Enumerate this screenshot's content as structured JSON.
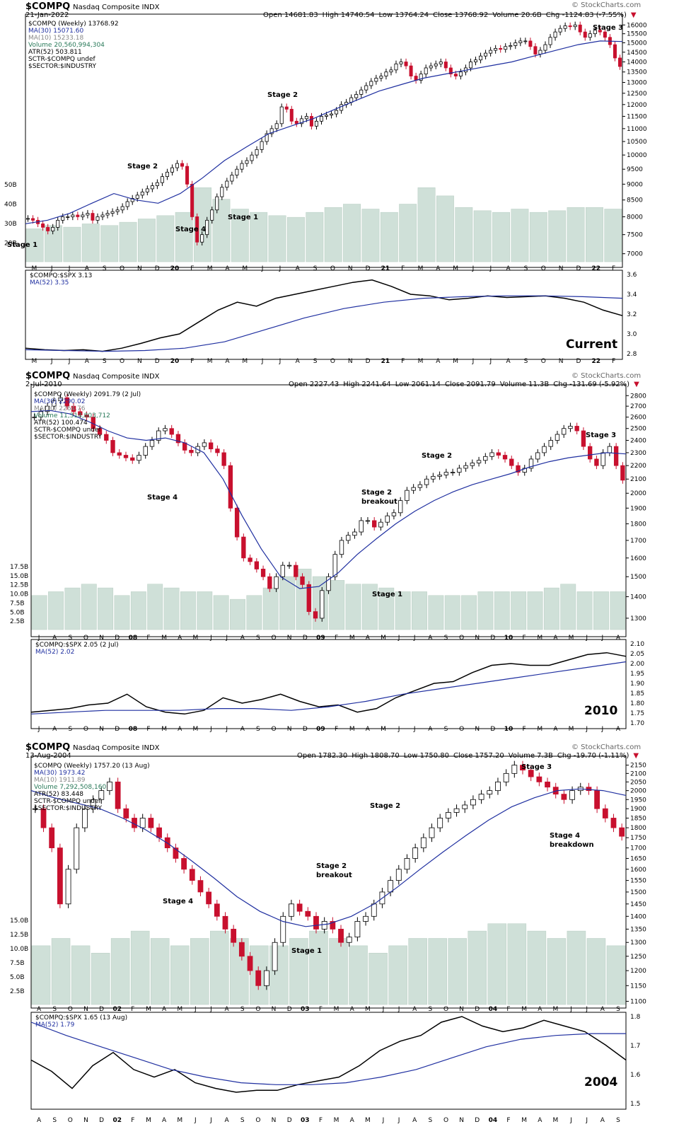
{
  "colors": {
    "up": "#000000",
    "down": "#c8102e",
    "ma30": "#1f2fa0",
    "ma10": "#999999",
    "volume": "#cfe0d8",
    "level": "#000000",
    "ratio": "#000000"
  },
  "panels": [
    {
      "symbol": "$COMPQ",
      "name": "Nasdaq Composite INDX",
      "date": "21-Jan-2022",
      "ohlc": {
        "open": "Open 14681.83",
        "high": "High 14740.54",
        "low": "Low 13764.24",
        "close": "Close 13768.92",
        "volume": "Volume 20.6B",
        "chg": "Chg -1124.83 (-7.55%)"
      },
      "brand": "© StockCharts.com",
      "legend": [
        "$COMPQ (Weekly) 13768.92",
        "MA(30) 15071.60",
        "MA(10) 15233.18",
        "Volume 20,560,994,304",
        "ATR(52) 503.811",
        "SCTR-$COMPQ undef",
        "$SECTOR:$INDUSTRY"
      ],
      "ratio_legend": [
        "$COMPQ:$SPX 3.13",
        "MA(52) 3.35"
      ],
      "period_label": "Current",
      "annotations": [
        "Stage 1",
        "Stage 2",
        "Stage 4",
        "Stage 1",
        "Stage 2",
        "Stage 3"
      ],
      "x_ticks": [
        "M",
        "J",
        "J",
        "A",
        "S",
        "O",
        "N",
        "D",
        "20",
        "F",
        "M",
        "A",
        "M",
        "J",
        "J",
        "A",
        "S",
        "O",
        "N",
        "D",
        "21",
        "F",
        "M",
        "A",
        "M",
        "J",
        "J",
        "A",
        "S",
        "O",
        "N",
        "D",
        "22",
        "F"
      ],
      "price_ticks": [
        "16000",
        "15500",
        "15000",
        "14500",
        "14000",
        "13500",
        "13000",
        "12500",
        "12000",
        "11500",
        "11000",
        "10500",
        "10000",
        "9500",
        "9000",
        "8500",
        "8000",
        "7500",
        "7000"
      ],
      "volume_ticks": [
        "50B",
        "40B",
        "30B",
        "20B"
      ],
      "ratio_ticks": [
        "3.6",
        "3.4",
        "3.2",
        "3.0",
        "2.8"
      ]
    },
    {
      "symbol": "$COMPQ",
      "name": "Nasdaq Composite INDX",
      "date": "2-Jul-2010",
      "ohlc": {
        "open": "Open 2227.43",
        "high": "High 2241.64",
        "low": "Low 2061.14",
        "close": "Close 2091.79",
        "volume": "Volume 11.3B",
        "chg": "Chg -131.69 (-5.92%)"
      },
      "brand": "© StockCharts.com",
      "legend": [
        "$COMPQ (Weekly) 2091.79 (2 Jul)",
        "MA(30) 2290.02",
        "MA(10) 2264.76",
        "Volume 11,314,803,712",
        "ATR(52) 100.474",
        "SCTR-$COMPQ undef",
        "$SECTOR:$INDUSTRY"
      ],
      "ratio_legend": [
        "$COMPQ:$SPX 2.05 (2 Jul)",
        "MA(52) 2.02"
      ],
      "period_label": "2010",
      "annotations": [
        "Stage 4",
        "Stage 2",
        "breakout",
        "Stage 1",
        "Stage 2",
        "Stage 3"
      ],
      "x_ticks": [
        "J",
        "A",
        "S",
        "O",
        "N",
        "D",
        "08",
        "F",
        "M",
        "A",
        "M",
        "J",
        "J",
        "A",
        "S",
        "O",
        "N",
        "D",
        "09",
        "F",
        "M",
        "A",
        "M",
        "J",
        "J",
        "A",
        "S",
        "O",
        "N",
        "D",
        "10",
        "F",
        "M",
        "A",
        "M",
        "J",
        "J",
        "A"
      ],
      "price_ticks": [
        "2800",
        "2700",
        "2600",
        "2500",
        "2400",
        "2300",
        "2200",
        "2100",
        "2000",
        "1900",
        "1800",
        "1700",
        "1600",
        "1500",
        "1400",
        "1300"
      ],
      "volume_ticks": [
        "17.5B",
        "15.0B",
        "12.5B",
        "10.0B",
        "7.5B",
        "5.0B",
        "2.5B"
      ],
      "ratio_ticks": [
        "2.10",
        "2.05",
        "2.00",
        "1.95",
        "1.90",
        "1.85",
        "1.80",
        "1.75",
        "1.70"
      ]
    },
    {
      "symbol": "$COMPQ",
      "name": "Nasdaq Composite INDX",
      "date": "13-Aug-2004",
      "ohlc": {
        "open": "Open 1782.30",
        "high": "High 1808.70",
        "low": "Low 1750.80",
        "close": "Close 1757.20",
        "volume": "Volume 7.3B",
        "chg": "Chg -19.70 (-1.11%)"
      },
      "brand": "© StockCharts.com",
      "legend": [
        "$COMPQ (Weekly) 1757.20 (13 Aug)",
        "MA(30) 1973.42",
        "MA(10) 1911.89",
        "Volume 7,292,508,160",
        "ATR(52) 83.448",
        "SCTR-$COMPQ undef",
        "$SECTOR:$INDUSTRY"
      ],
      "ratio_legend": [
        "$COMPQ:$SPX 1.65 (13 Aug)",
        "MA(52) 1.79"
      ],
      "period_label": "2004",
      "annotations": [
        "Stage 4",
        "Stage 2",
        "breakout",
        "Stage 1",
        "Stage 2",
        "Stage 3",
        "Stage 4",
        "breakdown"
      ],
      "x_ticks": [
        "A",
        "S",
        "O",
        "N",
        "D",
        "02",
        "F",
        "M",
        "A",
        "M",
        "J",
        "J",
        "A",
        "S",
        "O",
        "N",
        "D",
        "03",
        "F",
        "M",
        "A",
        "M",
        "J",
        "J",
        "A",
        "S",
        "O",
        "N",
        "D",
        "04",
        "F",
        "M",
        "A",
        "M",
        "J",
        "J",
        "A",
        "S"
      ],
      "price_ticks": [
        "2150",
        "2100",
        "2050",
        "2000",
        "1950",
        "1900",
        "1850",
        "1800",
        "1750",
        "1700",
        "1650",
        "1600",
        "1550",
        "1500",
        "1450",
        "1400",
        "1350",
        "1300",
        "1250",
        "1200",
        "1150",
        "1100"
      ],
      "volume_ticks": [
        "15.0B",
        "12.5B",
        "10.0B",
        "7.5B",
        "5.0B",
        "2.5B"
      ],
      "ratio_ticks": [
        "1.8",
        "1.7",
        "1.6",
        "1.5"
      ]
    }
  ],
  "chart_data": [
    {
      "type": "candlestick",
      "title": "$COMPQ Nasdaq Composite INDX",
      "subtitle": "21-Jan-2022",
      "series": [
        {
          "name": "$COMPQ (Weekly)",
          "values": [
            7950,
            7900,
            7800,
            7700,
            7600,
            7700,
            7900,
            8000,
            8000,
            8050,
            8000,
            8050,
            8100,
            7900,
            8000,
            8050,
            8100,
            8150,
            8200,
            8300,
            8450,
            8550,
            8650,
            8750,
            8850,
            8950,
            9050,
            9250,
            9400,
            9550,
            9700,
            9600,
            9000,
            8000,
            7300,
            7500,
            7900,
            8200,
            8600,
            8900,
            9100,
            9300,
            9500,
            9700,
            9800,
            10000,
            10200,
            10500,
            10800,
            11000,
            11200,
            11900,
            11800,
            11300,
            11200,
            11400,
            11500,
            11100,
            11300,
            11500,
            11550,
            11600,
            11750,
            12000,
            12100,
            12300,
            12450,
            12650,
            12850,
            13050,
            13200,
            13300,
            13500,
            13600,
            13900,
            14000,
            13800,
            13300,
            13100,
            13400,
            13700,
            13800,
            13900,
            14000,
            13700,
            13400,
            13300,
            13500,
            13700,
            14000,
            14100,
            14300,
            14450,
            14600,
            14700,
            14650,
            14800,
            14850,
            15000,
            15100,
            15100,
            14800,
            14400,
            14600,
            14900,
            15300,
            15600,
            15800,
            15950,
            15900,
            16000,
            15600,
            15300,
            15500,
            15700,
            15600,
            15300,
            14900,
            14200,
            13769
          ]
        },
        {
          "name": "MA(30)",
          "values": [
            7800,
            7900,
            8100,
            8400,
            8700,
            8500,
            8400,
            8700,
            9200,
            9800,
            10300,
            10800,
            11100,
            11400,
            11800,
            12200,
            12600,
            12900,
            13200,
            13400,
            13600,
            13800,
            14000,
            14300,
            14600,
            14900,
            15100,
            15071
          ]
        },
        {
          "name": "Volume",
          "values": [
            20,
            22,
            21,
            23,
            22,
            24,
            26,
            28,
            30,
            45,
            38,
            32,
            30,
            28,
            27,
            30,
            33,
            35,
            32,
            30,
            35,
            45,
            40,
            33,
            31,
            30,
            32,
            30,
            31,
            33,
            33,
            32
          ]
        },
        {
          "name": "$COMPQ:$SPX",
          "values": [
            2.72,
            2.7,
            2.69,
            2.7,
            2.68,
            2.72,
            2.78,
            2.85,
            2.9,
            3.05,
            3.2,
            3.3,
            3.25,
            3.35,
            3.4,
            3.45,
            3.5,
            3.55,
            3.58,
            3.5,
            3.4,
            3.38,
            3.33,
            3.35,
            3.38,
            3.36,
            3.37,
            3.38,
            3.35,
            3.3,
            3.2,
            3.13
          ]
        },
        {
          "name": "MA(52)",
          "values": [
            2.7,
            2.69,
            2.68,
            2.69,
            2.72,
            2.8,
            2.95,
            3.1,
            3.22,
            3.3,
            3.35,
            3.37,
            3.38,
            3.38,
            3.37,
            3.35
          ]
        }
      ],
      "ylim": [
        6800,
        16300
      ],
      "ratio_ylim": [
        2.65,
        3.65
      ]
    },
    {
      "type": "candlestick",
      "title": "$COMPQ Nasdaq Composite INDX",
      "subtitle": "2-Jul-2010",
      "series": [
        {
          "name": "$COMPQ (Weekly)",
          "values": [
            2600,
            2650,
            2700,
            2750,
            2780,
            2700,
            2650,
            2620,
            2600,
            2500,
            2450,
            2400,
            2300,
            2280,
            2260,
            2240,
            2280,
            2350,
            2400,
            2480,
            2500,
            2450,
            2380,
            2320,
            2300,
            2350,
            2380,
            2330,
            2300,
            2200,
            1900,
            1720,
            1600,
            1580,
            1540,
            1500,
            1440,
            1500,
            1560,
            1560,
            1500,
            1460,
            1330,
            1300,
            1430,
            1500,
            1620,
            1700,
            1730,
            1750,
            1820,
            1820,
            1780,
            1810,
            1850,
            1870,
            1950,
            2020,
            2040,
            2060,
            2100,
            2120,
            2130,
            2150,
            2150,
            2180,
            2200,
            2220,
            2240,
            2270,
            2300,
            2280,
            2250,
            2200,
            2150,
            2180,
            2250,
            2300,
            2350,
            2400,
            2450,
            2500,
            2520,
            2480,
            2350,
            2250,
            2200,
            2300,
            2350,
            2200,
            2092
          ]
        },
        {
          "name": "MA(30)",
          "values": [
            2650,
            2660,
            2630,
            2560,
            2480,
            2420,
            2400,
            2420,
            2380,
            2300,
            2100,
            1850,
            1650,
            1500,
            1440,
            1450,
            1520,
            1620,
            1710,
            1800,
            1880,
            1950,
            2010,
            2060,
            2100,
            2140,
            2190,
            2230,
            2260,
            2280,
            2300,
            2290
          ]
        },
        {
          "name": "Volume",
          "values": [
            9,
            10,
            11,
            12,
            11,
            9,
            10,
            12,
            11,
            10,
            10,
            9,
            8,
            9,
            11,
            14,
            16,
            14,
            13,
            12,
            12,
            11,
            10,
            10,
            9,
            9,
            9,
            10,
            10,
            10,
            10,
            11,
            12,
            10,
            10,
            10
          ]
        },
        {
          "name": "$COMPQ:$SPX",
          "values": [
            1.74,
            1.75,
            1.76,
            1.78,
            1.79,
            1.84,
            1.77,
            1.74,
            1.73,
            1.75,
            1.82,
            1.79,
            1.81,
            1.84,
            1.8,
            1.77,
            1.78,
            1.74,
            1.76,
            1.82,
            1.86,
            1.9,
            1.91,
            1.96,
            2.0,
            2.01,
            2.0,
            2.0,
            2.03,
            2.06,
            2.07,
            2.05
          ]
        },
        {
          "name": "MA(52)",
          "values": [
            1.73,
            1.74,
            1.75,
            1.75,
            1.75,
            1.76,
            1.76,
            1.75,
            1.77,
            1.8,
            1.84,
            1.87,
            1.9,
            1.93,
            1.96,
            1.99,
            2.02
          ]
        }
      ],
      "ylim": [
        1250,
        2850
      ],
      "ratio_ylim": [
        1.68,
        2.12
      ]
    },
    {
      "type": "candlestick",
      "title": "$COMPQ Nasdaq Composite INDX",
      "subtitle": "13-Aug-2004",
      "series": [
        {
          "name": "$COMPQ (Weekly)",
          "values": [
            1900,
            1800,
            1700,
            1450,
            1600,
            1800,
            1900,
            1950,
            2000,
            2050,
            1900,
            1850,
            1800,
            1850,
            1800,
            1750,
            1700,
            1650,
            1600,
            1550,
            1500,
            1450,
            1400,
            1350,
            1300,
            1250,
            1200,
            1150,
            1200,
            1300,
            1400,
            1450,
            1420,
            1400,
            1350,
            1380,
            1350,
            1300,
            1320,
            1380,
            1400,
            1450,
            1500,
            1550,
            1600,
            1650,
            1700,
            1750,
            1800,
            1850,
            1880,
            1900,
            1920,
            1950,
            1980,
            2000,
            2050,
            2100,
            2150,
            2120,
            2080,
            2050,
            2020,
            1980,
            1950,
            2000,
            2020,
            2000,
            1900,
            1850,
            1800,
            1757
          ]
        },
        {
          "name": "MA(30)",
          "values": [
            2000,
            1960,
            1930,
            1900,
            1850,
            1790,
            1720,
            1640,
            1560,
            1480,
            1420,
            1380,
            1360,
            1370,
            1400,
            1450,
            1520,
            1600,
            1680,
            1760,
            1840,
            1910,
            1960,
            2000,
            2010,
            2000,
            1973
          ]
        },
        {
          "name": "Volume",
          "values": [
            8,
            9,
            8,
            7,
            9,
            10,
            9,
            8,
            9,
            10,
            9,
            8,
            8,
            9,
            10,
            9,
            8,
            7,
            8,
            9,
            9,
            9,
            10,
            11,
            11,
            10,
            9,
            10,
            9,
            8
          ]
        },
        {
          "name": "$COMPQ:$SPX",
          "values": [
            1.65,
            1.59,
            1.5,
            1.62,
            1.69,
            1.6,
            1.56,
            1.6,
            1.53,
            1.5,
            1.48,
            1.49,
            1.49,
            1.52,
            1.54,
            1.56,
            1.62,
            1.7,
            1.75,
            1.78,
            1.85,
            1.88,
            1.83,
            1.8,
            1.82,
            1.86,
            1.83,
            1.8,
            1.73,
            1.65
          ]
        },
        {
          "name": "MA(52)",
          "values": [
            1.85,
            1.78,
            1.72,
            1.66,
            1.6,
            1.56,
            1.53,
            1.52,
            1.52,
            1.53,
            1.56,
            1.6,
            1.66,
            1.72,
            1.76,
            1.78,
            1.79,
            1.79
          ]
        }
      ],
      "ylim": [
        1090,
        2170
      ],
      "ratio_ylim": [
        1.42,
        1.88
      ]
    }
  ]
}
